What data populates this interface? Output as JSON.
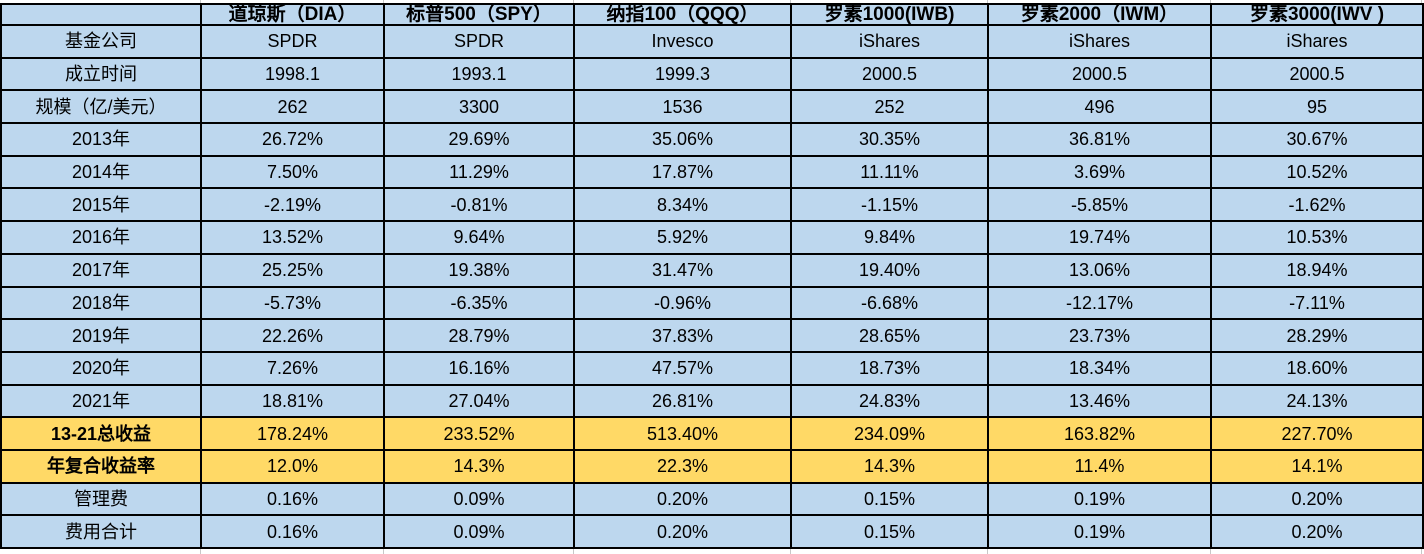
{
  "table": {
    "header": {
      "corner": "",
      "columns": [
        "道琼斯（DIA）",
        "标普500（SPY）",
        "纳指100（QQQ）",
        "罗素1000(IWB)",
        "罗素2000（IWM）",
        "罗素3000(IWV )"
      ]
    },
    "rows": [
      {
        "label": "基金公司",
        "style": "blue",
        "bold_label": false,
        "values": [
          "SPDR",
          "SPDR",
          "Invesco",
          "iShares",
          "iShares",
          "iShares"
        ]
      },
      {
        "label": "成立时间",
        "style": "blue",
        "bold_label": false,
        "values": [
          "1998.1",
          "1993.1",
          "1999.3",
          "2000.5",
          "2000.5",
          "2000.5"
        ]
      },
      {
        "label": "规模（亿/美元）",
        "style": "blue",
        "bold_label": false,
        "values": [
          "262",
          "3300",
          "1536",
          "252",
          "496",
          "95"
        ]
      },
      {
        "label": "2013年",
        "style": "blue",
        "bold_label": false,
        "values": [
          "26.72%",
          "29.69%",
          "35.06%",
          "30.35%",
          "36.81%",
          "30.67%"
        ]
      },
      {
        "label": "2014年",
        "style": "blue",
        "bold_label": false,
        "values": [
          "7.50%",
          "11.29%",
          "17.87%",
          "11.11%",
          "3.69%",
          "10.52%"
        ]
      },
      {
        "label": "2015年",
        "style": "blue",
        "bold_label": false,
        "values": [
          "-2.19%",
          "-0.81%",
          "8.34%",
          "-1.15%",
          "-5.85%",
          "-1.62%"
        ]
      },
      {
        "label": "2016年",
        "style": "blue",
        "bold_label": false,
        "values": [
          "13.52%",
          "9.64%",
          "5.92%",
          "9.84%",
          "19.74%",
          "10.53%"
        ]
      },
      {
        "label": "2017年",
        "style": "blue",
        "bold_label": false,
        "values": [
          "25.25%",
          "19.38%",
          "31.47%",
          "19.40%",
          "13.06%",
          "18.94%"
        ]
      },
      {
        "label": "2018年",
        "style": "blue",
        "bold_label": false,
        "values": [
          "-5.73%",
          "-6.35%",
          "-0.96%",
          "-6.68%",
          "-12.17%",
          "-7.11%"
        ]
      },
      {
        "label": "2019年",
        "style": "blue",
        "bold_label": false,
        "values": [
          "22.26%",
          "28.79%",
          "37.83%",
          "28.65%",
          "23.73%",
          "28.29%"
        ]
      },
      {
        "label": "2020年",
        "style": "blue",
        "bold_label": false,
        "values": [
          "7.26%",
          "16.16%",
          "47.57%",
          "18.73%",
          "18.34%",
          "18.60%"
        ]
      },
      {
        "label": "2021年",
        "style": "blue",
        "bold_label": false,
        "values": [
          "18.81%",
          "27.04%",
          "26.81%",
          "24.83%",
          "13.46%",
          "24.13%"
        ]
      },
      {
        "label": "13-21总收益",
        "style": "yellow",
        "bold_label": true,
        "values": [
          "178.24%",
          "233.52%",
          "513.40%",
          "234.09%",
          "163.82%",
          "227.70%"
        ]
      },
      {
        "label": "年复合收益率",
        "style": "yellow",
        "bold_label": true,
        "values": [
          "12.0%",
          "14.3%",
          "22.3%",
          "14.3%",
          "11.4%",
          "14.1%"
        ]
      },
      {
        "label": "管理费",
        "style": "blue",
        "bold_label": false,
        "values": [
          "0.16%",
          "0.09%",
          "0.20%",
          "0.15%",
          "0.19%",
          "0.20%"
        ]
      },
      {
        "label": "费用合计",
        "style": "blue",
        "bold_label": false,
        "values": [
          "0.16%",
          "0.09%",
          "0.20%",
          "0.15%",
          "0.19%",
          "0.20%"
        ]
      }
    ],
    "colors": {
      "cell_blue": "#BDD7EE",
      "cell_yellow": "#FFD966",
      "border": "#000000",
      "gridline": "#C8C8C8"
    }
  }
}
